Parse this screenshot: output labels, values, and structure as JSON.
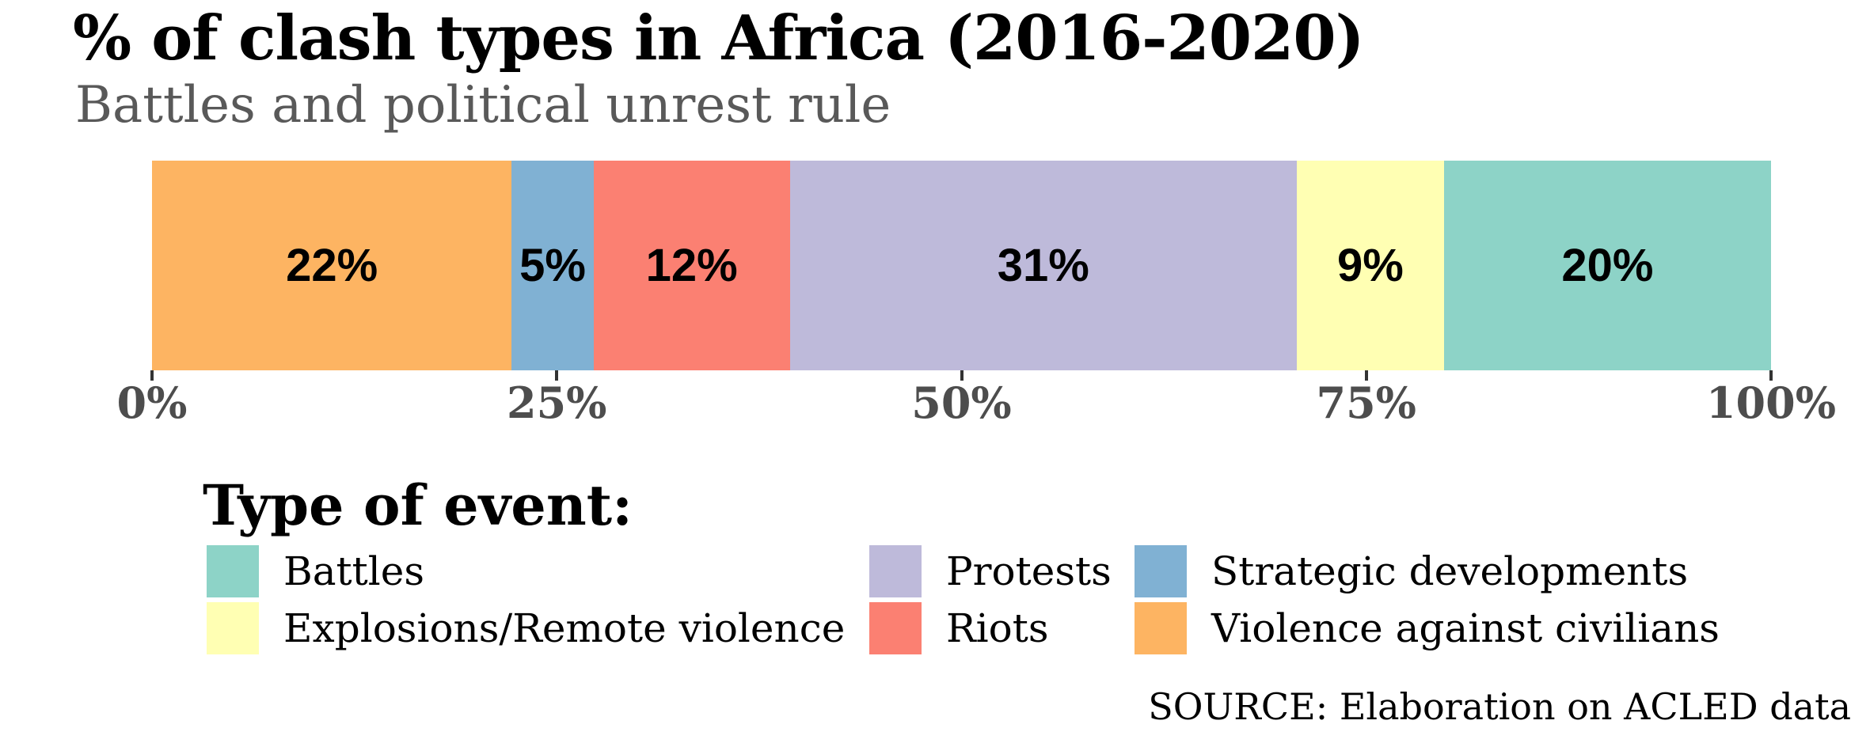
{
  "title": "% of clash types in Africa (2016-2020)",
  "subtitle": "Battles and political unrest rule",
  "legend_title": "Type of event:",
  "source": "SOURCE: Elaboration on ACLED data",
  "chart_data": {
    "type": "bar",
    "variant": "horizontal-stacked-percentage",
    "title": "% of clash types in Africa (2016-2020)",
    "subtitle": "Battles and political unrest rule",
    "legend_title": "Type of event:",
    "source": "SOURCE: Elaboration on ACLED data",
    "xlim": [
      0,
      100
    ],
    "axis_ticks": [
      "0%",
      "25%",
      "50%",
      "75%",
      "100%"
    ],
    "grid": false,
    "legend_position": "bottom-left",
    "segments": [
      {
        "name": "Violence against civilians",
        "value": 22,
        "label": "22%",
        "color": "#FDB462"
      },
      {
        "name": "Strategic developments",
        "value": 5,
        "label": "5%",
        "color": "#80B1D3"
      },
      {
        "name": "Riots",
        "value": 12,
        "label": "12%",
        "color": "#FB8072"
      },
      {
        "name": "Protests",
        "value": 31,
        "label": "31%",
        "color": "#BEBADA"
      },
      {
        "name": "Explosions/Remote violence",
        "value": 9,
        "label": "9%",
        "color": "#FFFFB3"
      },
      {
        "name": "Battles",
        "value": 20,
        "label": "20%",
        "color": "#8DD3C7"
      }
    ],
    "legend": [
      {
        "label": "Battles",
        "color": "#8DD3C7"
      },
      {
        "label": "Explosions/Remote violence",
        "color": "#FFFFB3"
      },
      {
        "label": "Protests",
        "color": "#BEBADA"
      },
      {
        "label": "Riots",
        "color": "#FB8072"
      },
      {
        "label": "Strategic developments",
        "color": "#80B1D3"
      },
      {
        "label": "Violence against civilians",
        "color": "#FDB462"
      }
    ]
  }
}
